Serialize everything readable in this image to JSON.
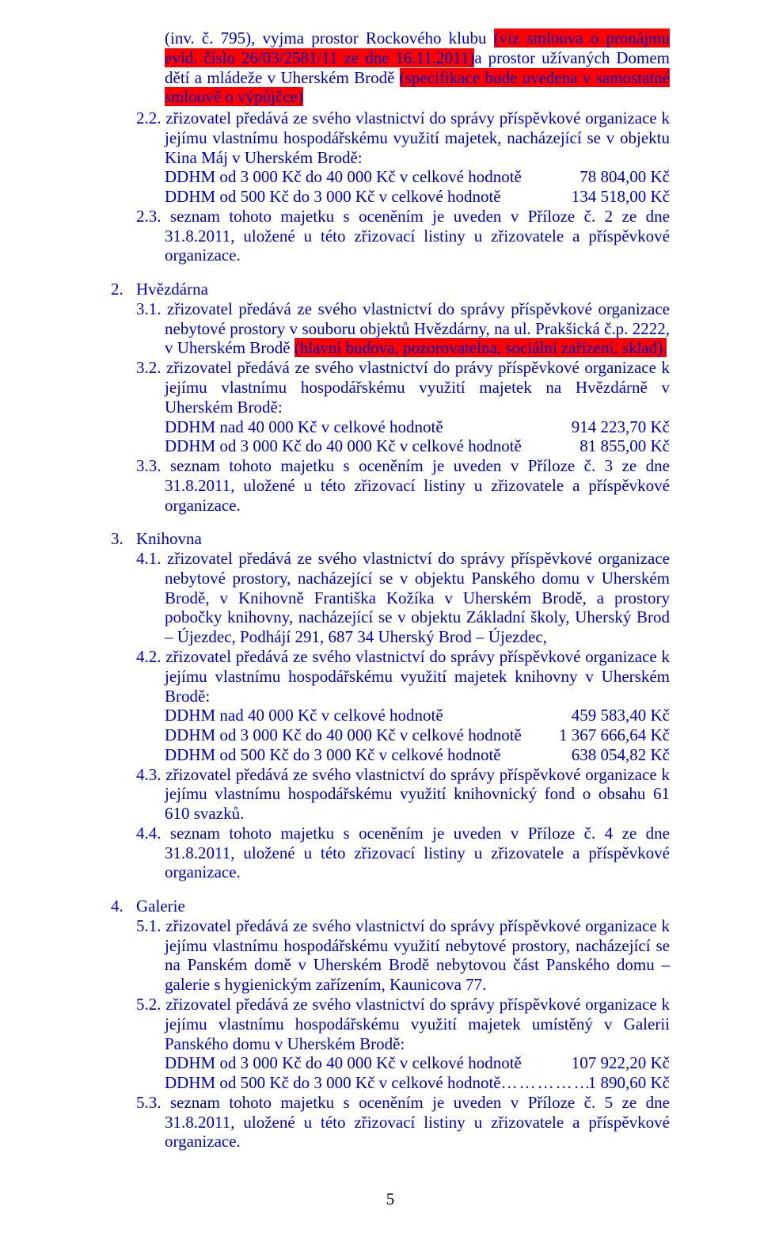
{
  "intro": {
    "p1_a": "(inv. č. 795), vyjma prostor Rockového klubu ",
    "p1_hl": "(viz smlouva o pronájmu evid. číslo 26/03/2581/11 ze dne 16.11.2011)",
    "p1_b": "a prostor užívaných Domem dětí a mládeže v Uherském Brodě ",
    "p1_hl2": "(specifikace bude uvedena v samostatné smlouvě o výpůjčce)",
    "p2_num": "2.2.",
    "p2_a": " zřizovatel předává ze svého vlastnictví do správy příspěvkové organizace k jejímu vlastnímu hospodářskému využití majetek, nacházející se v objektu Kina Máj v Uherském Brodě:",
    "p2_l1_lbl": "DDHM od 3 000 Kč do 40 000 Kč v celkové hodnotě",
    "p2_l1_val": "78 804,00  Kč",
    "p2_l2_lbl": "DDHM od 500 Kč do 3 000 Kč v celkové hodnotě",
    "p2_l2_val": "134 518,00  Kč",
    "p3_num": "2.3.",
    "p3": " seznam tohoto majetku s oceněním je uveden v  Příloze č. 2 ze dne 31.8.2011, uložené u této zřizovací listiny u zřizovatele a příspěvkové organizace."
  },
  "s2": {
    "num": "2.",
    "title": "Hvězdárna",
    "i1_num": "3.1.",
    "i1_a": " zřizovatel předává ze svého vlastnictví do správy příspěvkové organizace nebytové prostory v souboru objektů Hvězdárny, na ul. Prakšická č.p. 2222, v Uherském Brodě ",
    "i1_hl": "(hlavní budova, pozorovatelna, sociální zařízení, sklad).",
    "i2_num": "3.2.",
    "i2": " zřizovatel předává ze svého vlastnictví do právy příspěvkové organizace k jejímu vlastnímu hospodářskému využití majetek na Hvězdárně v Uherském Brodě:",
    "i2_l1_lbl": "DDHM nad 40 000 Kč v celkové hodnotě",
    "i2_l1_val": "914 223,70  Kč",
    "i2_l2_lbl": "DDHM od  3 000 Kč do 40 000 Kč v celkové hodnotě",
    "i2_l2_val": "81 855,00  Kč",
    "i3_num": "3.3.",
    "i3": " seznam tohoto majetku s oceněním je uveden v  Příloze č. 3 ze dne 31.8.2011, uložené u této zřizovací listiny u zřizovatele a příspěvkové organizace."
  },
  "s3": {
    "num": "3.",
    "title": "Knihovna",
    "i1_num": "4.1.",
    "i1": " zřizovatel předává ze svého vlastnictví do správy příspěvkové organizace nebytové prostory, nacházející se v objektu Panského domu v Uherském Brodě, v Knihovně Františka Kožíka v Uherském Brodě, a prostory pobočky knihovny, nacházející se v objektu Základní školy, Uherský Brod – Újezdec, Podhájí 291, 687 34  Uherský Brod – Újezdec,",
    "i2_num": "4.2.",
    "i2": " zřizovatel předává ze svého vlastnictví do správy příspěvkové organizace k jejímu vlastnímu hospodářskému využití majetek knihovny v Uherském Brodě:",
    "i2_l1_lbl": "DDHM nad 40 000 Kč v celkové hodnotě",
    "i2_l1_val": "459 583,40  Kč",
    "i2_l2_lbl": "DDHM od  3 000 Kč do 40 000 Kč v celkové hodnotě",
    "i2_l2_val": "1 367 666,64  Kč",
    "i2_l3_lbl": "DDHM od 500 Kč do 3 000 Kč v celkové hodnotě",
    "i2_l3_val": "638 054,82  Kč",
    "i3_num": "4.3.",
    "i3": " zřizovatel předává ze svého vlastnictví do správy příspěvkové organizace k jejímu vlastnímu hospodářskému využití  knihovnický fond o obsahu 61 610 svazků.",
    "i4_num": "4.4.",
    "i4": " seznam tohoto majetku s oceněním je uveden v  Příloze č. 4 ze dne 31.8.2011, uložené u této zřizovací listiny u zřizovatele a příspěvkové organizace."
  },
  "s4": {
    "num": "4.",
    "title": "Galerie",
    "i1_num": "5.1.",
    "i1": " zřizovatel předává ze svého vlastnictví do správy příspěvkové organizace k jejímu vlastnímu hospodářskému využití nebytové prostory, nacházející se na Panském domě v  Uherském Brodě nebytovou část Panského domu – galerie s hygienickým zařízením, Kaunicova 77.",
    "i2_num": "5.2.",
    "i2": " zřizovatel předává ze svého vlastnictví do správy příspěvkové organizace k jejímu vlastnímu hospodářskému využití majetek umístěný v Galerii Panského domu v Uherském Brodě:",
    "i2_l1_lbl": "DDHM od  3 000 Kč do 40 000 Kč v celkové hodnotě",
    "i2_l1_val": "107 922,20 Kč",
    "i2_l2_lbl": "DDHM od 500 Kč do 3 000 Kč v celkové hodnotě ",
    "i2_l2_val": "1 890,60 Kč",
    "i3_num": "5.3.",
    "i3": " seznam tohoto majetku s oceněním je uveden v Příloze č. 5 ze dne 31.8.2011, uložené u této zřizovací listiny u zřizovatele a příspěvkové organizace."
  },
  "page": "5"
}
